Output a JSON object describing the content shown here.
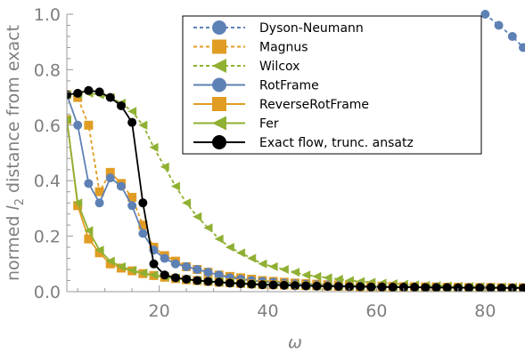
{
  "chart_data": {
    "type": "line",
    "xlabel": "ω",
    "ylabel_parts": [
      "normed ",
      "l",
      "2",
      " distance from exact"
    ],
    "xlim": [
      3,
      87
    ],
    "ylim": [
      0,
      1.0
    ],
    "x_ticks": [
      "20",
      "40",
      "60",
      "80"
    ],
    "x_tick_values": [
      20,
      40,
      60,
      80
    ],
    "y_ticks": [
      "0.0",
      "0.2",
      "0.4",
      "0.6",
      "0.8",
      "1.0"
    ],
    "y_tick_values": [
      0,
      0.2,
      0.4,
      0.6,
      0.8,
      1.0
    ],
    "legend_position": "top-right",
    "series": [
      {
        "name": "Dyson-Neumann",
        "color": "#5e81b5",
        "marker": "circle",
        "dashed": true,
        "x": [
          80,
          82.5,
          85,
          87
        ],
        "y": [
          1.0,
          0.96,
          0.92,
          0.88
        ]
      },
      {
        "name": "Magnus",
        "color": "#e19c24",
        "marker": "square",
        "dashed": true,
        "x": [
          3,
          5,
          7,
          9,
          11,
          13,
          15,
          17,
          19,
          21,
          23,
          25,
          27,
          29,
          31,
          33,
          35,
          37,
          39,
          41,
          43,
          45,
          47,
          49,
          51,
          53,
          55,
          57,
          59,
          61,
          63,
          65,
          67,
          69,
          71,
          73,
          75,
          77,
          79,
          81,
          83,
          85,
          87
        ],
        "y": [
          0.71,
          0.7,
          0.6,
          0.36,
          0.43,
          0.39,
          0.34,
          0.24,
          0.16,
          0.13,
          0.11,
          0.09,
          0.08,
          0.07,
          0.06,
          0.055,
          0.05,
          0.045,
          0.04,
          0.037,
          0.034,
          0.031,
          0.029,
          0.027,
          0.025,
          0.024,
          0.023,
          0.022,
          0.021,
          0.02,
          0.019,
          0.018,
          0.018,
          0.017,
          0.017,
          0.016,
          0.016,
          0.015,
          0.015,
          0.015,
          0.014,
          0.014,
          0.014
        ]
      },
      {
        "name": "Wilcox",
        "color": "#8fb032",
        "marker": "triangle",
        "dashed": true,
        "x": [
          3,
          5,
          7,
          9,
          11,
          13,
          15,
          17,
          19,
          21,
          23,
          25,
          27,
          29,
          31,
          33,
          35,
          37,
          39,
          41,
          43,
          45,
          47,
          49,
          51,
          53,
          55,
          57,
          59,
          61,
          63,
          65,
          67,
          69,
          71,
          73,
          75,
          77,
          79,
          81,
          83,
          85,
          87
        ],
        "y": [
          0.71,
          0.71,
          0.715,
          0.71,
          0.7,
          0.68,
          0.65,
          0.6,
          0.52,
          0.45,
          0.38,
          0.32,
          0.27,
          0.23,
          0.19,
          0.16,
          0.14,
          0.12,
          0.1,
          0.09,
          0.08,
          0.07,
          0.06,
          0.055,
          0.05,
          0.045,
          0.04,
          0.037,
          0.034,
          0.031,
          0.029,
          0.027,
          0.025,
          0.023,
          0.022,
          0.021,
          0.02,
          0.019,
          0.018,
          0.017,
          0.017,
          0.016,
          0.016
        ]
      },
      {
        "name": "RotFrame",
        "color": "#5e81b5",
        "marker": "circle",
        "dashed": false,
        "x": [
          3,
          5,
          7,
          9,
          11,
          13,
          15,
          17,
          19,
          21,
          23,
          25,
          27,
          29,
          31,
          33,
          35,
          37,
          39,
          41,
          43,
          45,
          47,
          49,
          51,
          53,
          55,
          57,
          59,
          61,
          63,
          65,
          67,
          69,
          71,
          73,
          75,
          77,
          79,
          81,
          83,
          85,
          87
        ],
        "y": [
          0.71,
          0.6,
          0.39,
          0.32,
          0.41,
          0.38,
          0.31,
          0.21,
          0.15,
          0.12,
          0.1,
          0.09,
          0.08,
          0.07,
          0.06,
          0.05,
          0.045,
          0.04,
          0.037,
          0.034,
          0.031,
          0.029,
          0.027,
          0.025,
          0.024,
          0.022,
          0.021,
          0.02,
          0.019,
          0.018,
          0.018,
          0.017,
          0.017,
          0.016,
          0.016,
          0.015,
          0.015,
          0.015,
          0.014,
          0.014,
          0.014,
          0.014,
          0.013
        ]
      },
      {
        "name": "ReverseRotFrame",
        "color": "#e19c24",
        "marker": "square",
        "dashed": false,
        "x": [
          3,
          5,
          7,
          9,
          11,
          13,
          15,
          17,
          19,
          21,
          23,
          25,
          27,
          29,
          31,
          33,
          35,
          37,
          39,
          41,
          43,
          45,
          47,
          49,
          51,
          53,
          55,
          57,
          59,
          61,
          63,
          65,
          67,
          69,
          71,
          73,
          75,
          77,
          79,
          81,
          83,
          85,
          87
        ],
        "y": [
          0.62,
          0.31,
          0.19,
          0.14,
          0.1,
          0.085,
          0.075,
          0.065,
          0.058,
          0.052,
          0.047,
          0.043,
          0.04,
          0.037,
          0.034,
          0.032,
          0.03,
          0.028,
          0.026,
          0.025,
          0.024,
          0.023,
          0.022,
          0.021,
          0.02,
          0.019,
          0.019,
          0.018,
          0.018,
          0.017,
          0.017,
          0.016,
          0.016,
          0.016,
          0.015,
          0.015,
          0.015,
          0.014,
          0.014,
          0.014,
          0.014,
          0.013,
          0.013
        ]
      },
      {
        "name": "Fer",
        "color": "#8fb032",
        "marker": "triangle",
        "dashed": false,
        "x": [
          3,
          5,
          7,
          9,
          11,
          13,
          15,
          17,
          19,
          21,
          23,
          25,
          27,
          29,
          31,
          33,
          35,
          37,
          39,
          41,
          43,
          45,
          47,
          49,
          51,
          53,
          55,
          57,
          59,
          61,
          63,
          65,
          67,
          69,
          71,
          73,
          75,
          77,
          79,
          81,
          83,
          85,
          87
        ],
        "y": [
          0.62,
          0.32,
          0.22,
          0.15,
          0.11,
          0.09,
          0.077,
          0.067,
          0.06,
          0.054,
          0.049,
          0.045,
          0.041,
          0.038,
          0.035,
          0.033,
          0.031,
          0.029,
          0.027,
          0.026,
          0.025,
          0.024,
          0.023,
          0.022,
          0.021,
          0.02,
          0.019,
          0.019,
          0.018,
          0.018,
          0.017,
          0.017,
          0.016,
          0.016,
          0.016,
          0.015,
          0.015,
          0.015,
          0.014,
          0.014,
          0.014,
          0.014,
          0.013
        ]
      },
      {
        "name": "Exact flow, trunc. ansatz",
        "color": "#000000",
        "marker": "circle",
        "dashed": false,
        "x": [
          3,
          5,
          7,
          9,
          11,
          13,
          15,
          17,
          19,
          21,
          23,
          25,
          27,
          29,
          31,
          33,
          35,
          37,
          39,
          41,
          43,
          45,
          47,
          49,
          51,
          53,
          55,
          57,
          59,
          61,
          63,
          65,
          67,
          69,
          71,
          73,
          75,
          77,
          79,
          81,
          83,
          85,
          87
        ],
        "y": [
          0.71,
          0.715,
          0.725,
          0.72,
          0.7,
          0.67,
          0.61,
          0.32,
          0.1,
          0.06,
          0.05,
          0.045,
          0.04,
          0.037,
          0.034,
          0.031,
          0.029,
          0.027,
          0.025,
          0.024,
          0.023,
          0.022,
          0.021,
          0.02,
          0.019,
          0.019,
          0.018,
          0.018,
          0.017,
          0.017,
          0.016,
          0.016,
          0.016,
          0.015,
          0.015,
          0.015,
          0.014,
          0.014,
          0.014,
          0.014,
          0.013,
          0.013,
          0.013
        ]
      }
    ]
  }
}
